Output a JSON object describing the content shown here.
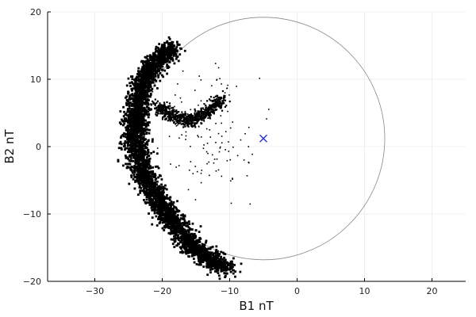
{
  "chart_data": {
    "type": "scatter",
    "title": "",
    "xlabel": "B1 nT",
    "ylabel": "B2 nT",
    "xlim": [
      -37,
      25
    ],
    "ylim": [
      -20,
      20
    ],
    "xticks": [
      -30,
      -20,
      -10,
      0,
      10,
      20
    ],
    "yticks": [
      -20,
      -10,
      0,
      10,
      20
    ],
    "xtick_labels": [
      "−30",
      "−20",
      "−10",
      "0",
      "10",
      "20"
    ],
    "ytick_labels": [
      "−20",
      "−10",
      "0",
      "10",
      "20"
    ],
    "grid": true,
    "legend": false,
    "series": [
      {
        "type": "scatter",
        "color": "#000000",
        "marker": "square",
        "approximate_path": [
          [
            -18.3,
            14.8
          ],
          [
            -20.1,
            13.2
          ],
          [
            -21.9,
            11.5
          ],
          [
            -23.0,
            9.0
          ],
          [
            -23.6,
            6.0
          ],
          [
            -24.0,
            3.0
          ],
          [
            -24.0,
            0.0
          ],
          [
            -23.3,
            -3.0
          ],
          [
            -22.0,
            -5.5
          ],
          [
            -20.5,
            -8.0
          ],
          [
            -19.0,
            -10.5
          ],
          [
            -17.5,
            -12.5
          ],
          [
            -16.0,
            -14.5
          ],
          [
            -14.0,
            -16.0
          ],
          [
            -12.0,
            -17.2
          ],
          [
            -10.5,
            -18.2
          ]
        ],
        "arm_path": [
          [
            -20.8,
            6.2
          ],
          [
            -18.5,
            4.5
          ],
          [
            -16.0,
            3.7
          ],
          [
            -13.5,
            5.0
          ],
          [
            -11.0,
            7.0
          ]
        ]
      },
      {
        "type": "circle",
        "center": [
          -5,
          1.2
        ],
        "radius": 18,
        "color": "#888888"
      },
      {
        "type": "marker",
        "marker": "x",
        "x": -5,
        "y": 1.2,
        "color": "#2233dd"
      }
    ]
  }
}
